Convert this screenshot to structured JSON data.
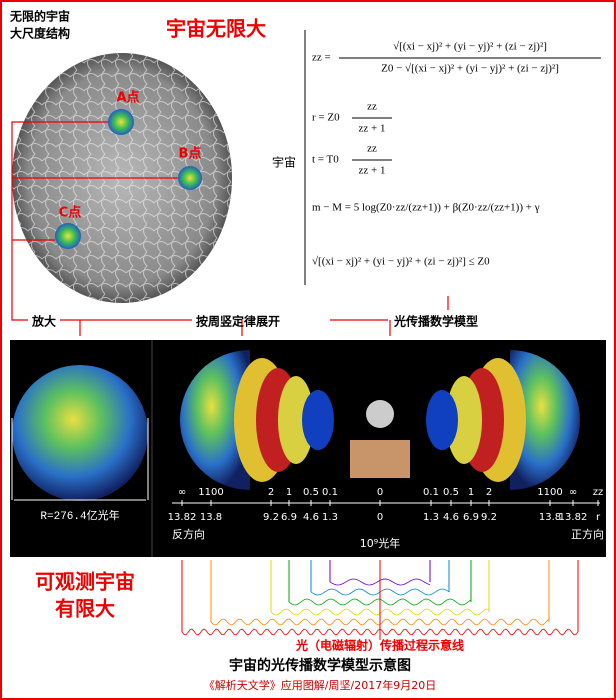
{
  "header": {
    "subtitle_lines": [
      "无限的宇宙",
      "大尺度结构"
    ],
    "title": "宇宙无限大"
  },
  "points": [
    "A点",
    "B点",
    "C点"
  ],
  "formulas": {
    "label": "宇宙",
    "items": [
      {
        "lhs": "zz =",
        "num": "√[(xi − xj)² + (yi − yj)² + (zi − zj)²]",
        "den": "Z0 − √[(xi − xj)² + (yi − yj)² + (zi − zj)²]"
      },
      {
        "lhs": "r = Z0",
        "num": "zz",
        "den": "zz + 1"
      },
      {
        "lhs": "t = T0",
        "num": "zz",
        "den": "zz + 1"
      },
      {
        "line": "m − M = 5 log(Z0·zz/(zz+1)) + β(Z0·zz/(zz+1)) + γ"
      },
      {
        "line": "√[(xi − xj)² + (yi − yj)² + (zi − zj)²] ≤ Z0"
      }
    ]
  },
  "flow": [
    "放大",
    "按周竖定律展开",
    "光传播数学模型"
  ],
  "radius_label": "R=276.4亿光年",
  "z_scale": [
    "∞",
    "1100",
    "2",
    "1",
    "0.5",
    "0.1",
    "0",
    "0.1",
    "0.5",
    "1",
    "2",
    "1100",
    "∞",
    "zz"
  ],
  "r_scale": [
    "13.82",
    "13.8",
    "9.2",
    "6.9",
    "4.6",
    "1.3",
    "0",
    "1.3",
    "4.6",
    "6.9",
    "9.2",
    "13.8",
    "13.82",
    "r"
  ],
  "directions": {
    "left": "反方向",
    "center": "10⁹光年",
    "right": "正方向"
  },
  "finite": [
    "可观测宇宙",
    "有限大"
  ],
  "wave_caption": "光（电磁辐射）传播过程示意线",
  "footer": {
    "title": "宇宙的光传播数学模型示意图",
    "credit": "《解析天文学》应用图解/周坚/2017年9月20日"
  }
}
